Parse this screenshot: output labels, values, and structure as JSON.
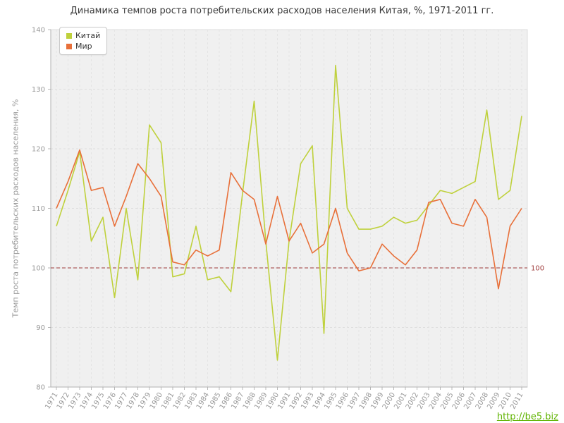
{
  "title": "Динамика темпов роста потребительских расходов населения Китая, %, 1971-2011 гг.",
  "watermark": {
    "text": "http://be5.biz",
    "color": "#5fb300"
  },
  "chart_data": {
    "type": "line",
    "title": "Динамика темпов роста потребительских расходов населения Китая, %, 1971-2011 гг.",
    "xlabel": "",
    "ylabel": "Темп роста потребительских расходов населения, %",
    "ylim": [
      80,
      140
    ],
    "y_ticks": [
      80,
      90,
      100,
      110,
      120,
      130,
      140
    ],
    "grid": true,
    "legend_position": "top-left",
    "reference_line": {
      "value": 100,
      "label": "100",
      "color": "#9e3a3a"
    },
    "categories": [
      "1971",
      "1972",
      "1973",
      "1974",
      "1975",
      "1976",
      "1977",
      "1978",
      "1979",
      "1980",
      "1981",
      "1982",
      "1983",
      "1984",
      "1985",
      "1986",
      "1987",
      "1988",
      "1989",
      "1990",
      "1991",
      "1992",
      "1993",
      "1994",
      "1995",
      "1996",
      "1997",
      "1998",
      "1999",
      "2000",
      "2001",
      "2002",
      "2003",
      "2004",
      "2005",
      "2006",
      "2007",
      "2008",
      "2009",
      "2010",
      "2011"
    ],
    "series": [
      {
        "name": "Китай",
        "color": "#bfd13c",
        "values": [
          107,
          113,
          119.5,
          104.5,
          108.5,
          95,
          110,
          98,
          124,
          121,
          98.5,
          99,
          107,
          98,
          98.5,
          96,
          112.5,
          128,
          104.5,
          84.5,
          104.5,
          117.5,
          120.5,
          89,
          134,
          110,
          106.5,
          106.5,
          107,
          108.5,
          107.5,
          108,
          110.5,
          113,
          112.5,
          113.5,
          114.5,
          126.5,
          111.5,
          113,
          125.5
        ]
      },
      {
        "name": "Мир",
        "color": "#e8703a",
        "values": [
          110,
          114.5,
          119.8,
          113,
          113.5,
          107,
          112,
          117.5,
          115,
          112,
          101,
          100.5,
          103,
          102,
          103,
          116,
          113,
          111.5,
          104,
          112,
          104.5,
          107.5,
          102.5,
          104,
          110,
          102.5,
          99.5,
          100,
          104,
          102,
          100.5,
          103,
          111,
          111.5,
          107.5,
          107,
          111.5,
          108.5,
          96.5,
          107,
          110
        ]
      }
    ]
  }
}
